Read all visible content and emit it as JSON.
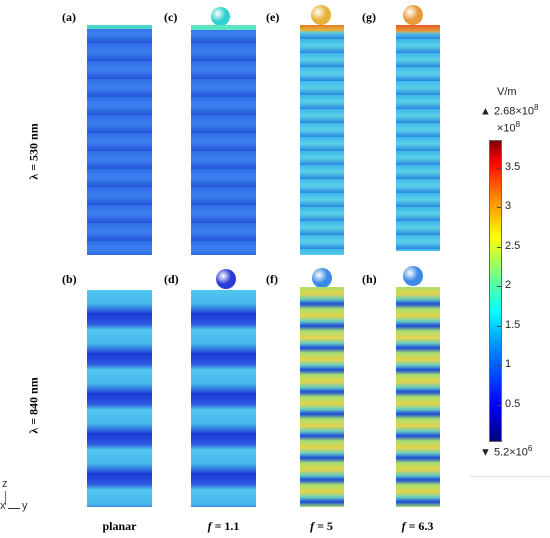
{
  "panels": [
    {
      "id": "a",
      "label": "(a)",
      "wavelength": "530 nm",
      "f": "planar",
      "sphere": null,
      "field": "low530"
    },
    {
      "id": "c",
      "label": "(c)",
      "wavelength": "530 nm",
      "f": "1.1",
      "sphere": "#2fd0d0",
      "field": "low530"
    },
    {
      "id": "e",
      "label": "(e)",
      "wavelength": "530 nm",
      "f": "5",
      "sphere": "#e6b43a",
      "field": "mid530"
    },
    {
      "id": "g",
      "label": "(g)",
      "wavelength": "530 nm",
      "f": "6.3",
      "sphere": "#e69a3a",
      "field": "mid530"
    },
    {
      "id": "b",
      "label": "(b)",
      "wavelength": "840 nm",
      "f": "planar",
      "sphere": null,
      "field": "std840"
    },
    {
      "id": "d",
      "label": "(d)",
      "wavelength": "840 nm",
      "f": "1.1",
      "sphere": "#2a3ad8",
      "field": "std840"
    },
    {
      "id": "f",
      "label": "(f)",
      "wavelength": "840 nm",
      "f": "5",
      "sphere": "#3a8ae6",
      "field": "hot840"
    },
    {
      "id": "h",
      "label": "(h)",
      "wavelength": "840 nm",
      "f": "6.3",
      "sphere": "#3a8ae6",
      "field": "hot840"
    }
  ],
  "row_labels": {
    "top": "λ = 530 nm",
    "bottom": "λ = 840 nm"
  },
  "col_labels": [
    {
      "prefix": "",
      "text": "planar"
    },
    {
      "prefix": "f",
      "text": " = 1.1"
    },
    {
      "prefix": "f",
      "text": " = 5"
    },
    {
      "prefix": "f",
      "text": " = 6.3"
    }
  ],
  "colorbar": {
    "unit": "V/m",
    "max_text": "▲ 2.68×10",
    "max_exp": "8",
    "scale_text": "×10",
    "scale_exp": "8",
    "min_text": "▼ 5.2×10",
    "min_exp": "6",
    "ticks": [
      "3.5",
      "3",
      "2.5",
      "2",
      "1.5",
      "1",
      "0.5"
    ],
    "tick_values": [
      3.5,
      3,
      2.5,
      2,
      1.5,
      1,
      0.5
    ],
    "range": [
      0.052,
      3.85
    ]
  },
  "axes": {
    "z": "z",
    "x": "x",
    "y": "y"
  }
}
